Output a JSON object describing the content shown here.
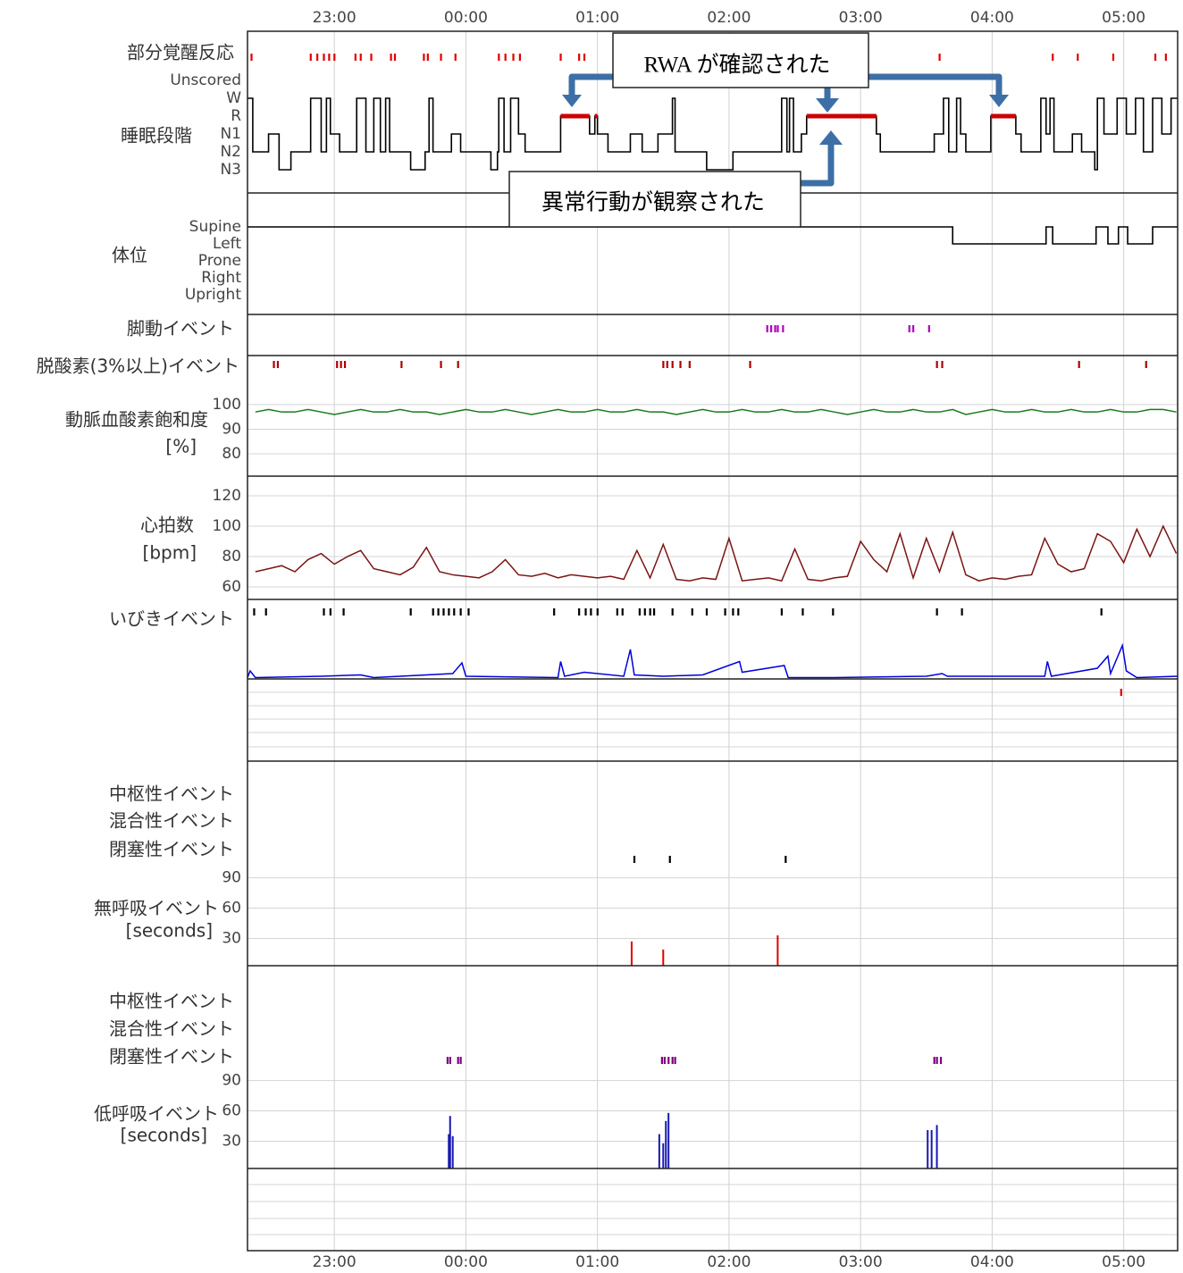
{
  "chart_data": {
    "type": "stacked-panels",
    "xlim": [
      22.34,
      29.41
    ],
    "xticks": [
      {
        "value": 23,
        "label": "23:00"
      },
      {
        "value": 24,
        "label": "00:00"
      },
      {
        "value": 25,
        "label": "01:00"
      },
      {
        "value": 26,
        "label": "02:00"
      },
      {
        "value": 27,
        "label": "03:00"
      },
      {
        "value": 28,
        "label": "04:00"
      },
      {
        "value": 29,
        "label": "05:00"
      }
    ],
    "panels": [
      {
        "type": "events",
        "label": "部分覚醒反応",
        "color": "#e00000",
        "x": [
          22.37,
          22.82,
          22.87,
          22.92,
          22.96,
          23.0,
          23.16,
          23.2,
          23.28,
          23.43,
          23.46,
          23.68,
          23.71,
          23.81,
          23.92,
          24.25,
          24.3,
          24.36,
          24.41,
          24.72,
          24.86,
          24.9,
          27.6,
          28.46,
          28.65,
          28.92,
          29.24,
          29.32
        ]
      },
      {
        "type": "step",
        "label": "睡眠段階",
        "categories": [
          "Unscored",
          "W",
          "R",
          "N1",
          "N2",
          "N3"
        ],
        "color": "#000000",
        "highlight": {
          "stage": "R",
          "color": "#cc0000"
        },
        "x": [
          22.34,
          22.38,
          22.5,
          22.58,
          22.67,
          22.82,
          22.9,
          22.94,
          22.97,
          23.04,
          23.17,
          23.24,
          23.3,
          23.35,
          23.39,
          23.42,
          23.58,
          23.69,
          23.72,
          23.75,
          23.89,
          23.96,
          24.19,
          24.24,
          24.25,
          24.29,
          24.34,
          24.4,
          24.45,
          24.72,
          24.94,
          24.98,
          25.0,
          25.08,
          25.25,
          25.34,
          25.46,
          25.57,
          25.59,
          25.83,
          26.03,
          26.4,
          26.44,
          26.46,
          26.49,
          26.55,
          26.59,
          27.12,
          27.15,
          27.56,
          27.63,
          27.67,
          27.73,
          27.76,
          27.8,
          27.99,
          28.18,
          28.22,
          28.37,
          28.41,
          28.44,
          28.47,
          28.61,
          28.68,
          28.78,
          28.8,
          28.85,
          28.95,
          29.02,
          29.09,
          29.15,
          29.22,
          29.29,
          29.36
        ],
        "stages": [
          "W",
          "N2",
          "N1",
          "N3",
          "N2",
          "W",
          "N2",
          "W",
          "N1",
          "N2",
          "W",
          "N2",
          "W",
          "N2",
          "W",
          "N2",
          "N3",
          "N2",
          "W",
          "N2",
          "N1",
          "N2",
          "N3",
          "N2",
          "W",
          "N2",
          "W",
          "N1",
          "N2",
          "R",
          "N1",
          "R",
          "N1",
          "N2",
          "N1",
          "N2",
          "N1",
          "W",
          "N2",
          "N3",
          "N2",
          "W",
          "N2",
          "W",
          "N2",
          "N1",
          "R",
          "N1",
          "N2",
          "N1",
          "W",
          "N2",
          "W",
          "N1",
          "N2",
          "R",
          "N1",
          "N2",
          "W",
          "N1",
          "W",
          "N2",
          "N1",
          "N2",
          "N3",
          "W",
          "N1",
          "W",
          "N1",
          "W",
          "N2",
          "W",
          "N1",
          "W"
        ]
      },
      {
        "type": "step",
        "label": "体位",
        "categories": [
          "Supine",
          "Left",
          "Prone",
          "Right",
          "Upright"
        ],
        "color": "#000000",
        "x": [
          22.34,
          27.7,
          28.41,
          28.46,
          28.79,
          28.88,
          28.96,
          29.03,
          29.22
        ],
        "stages": [
          "Supine",
          "Left",
          "Supine",
          "Left",
          "Supine",
          "Left",
          "Supine",
          "Left",
          "Supine"
        ]
      },
      {
        "type": "events",
        "label": "脚動イベント",
        "color": "#b000c0",
        "x": [
          26.29,
          26.32,
          26.35,
          26.37,
          26.41,
          27.37,
          27.4,
          27.52
        ]
      },
      {
        "type": "events",
        "label": "脱酸素(3%以上)イベント",
        "color": "#b00000",
        "x": [
          22.54,
          22.57,
          23.02,
          23.05,
          23.08,
          23.51,
          23.81,
          23.94,
          25.5,
          25.53,
          25.57,
          25.63,
          25.7,
          26.16,
          27.58,
          27.62,
          28.66,
          29.17
        ]
      },
      {
        "type": "line",
        "label": "動脈血酸素飽和度",
        "unit": "[%]",
        "ylim": [
          70.9,
          104.7
        ],
        "yticks": [
          100,
          90,
          80
        ],
        "color": "#1a7a1a",
        "x": [
          22.4,
          22.5,
          22.6,
          22.7,
          22.8,
          22.9,
          23.0,
          23.1,
          23.2,
          23.3,
          23.4,
          23.5,
          23.6,
          23.7,
          23.8,
          23.9,
          24.0,
          24.1,
          24.2,
          24.3,
          24.4,
          24.5,
          24.6,
          24.7,
          24.8,
          24.9,
          25.0,
          25.1,
          25.2,
          25.3,
          25.4,
          25.5,
          25.6,
          25.7,
          25.8,
          25.9,
          26.0,
          26.1,
          26.2,
          26.3,
          26.4,
          26.5,
          26.6,
          26.7,
          26.8,
          26.9,
          27.0,
          27.1,
          27.2,
          27.3,
          27.4,
          27.5,
          27.6,
          27.7,
          27.8,
          27.9,
          28.0,
          28.1,
          28.2,
          28.3,
          28.4,
          28.5,
          28.6,
          28.7,
          28.8,
          28.9,
          29.0,
          29.1,
          29.2,
          29.3,
          29.4
        ],
        "values": [
          97,
          98,
          97,
          97,
          98,
          97,
          96,
          97,
          98,
          97,
          97,
          98,
          97,
          97,
          96,
          97,
          98,
          97,
          97,
          98,
          97,
          96,
          97,
          98,
          97,
          97,
          98,
          97,
          97,
          98,
          97,
          97,
          96,
          97,
          98,
          97,
          97,
          98,
          97,
          97,
          98,
          97,
          97,
          98,
          97,
          96,
          97,
          98,
          97,
          97,
          98,
          97,
          97,
          98,
          96,
          97,
          98,
          97,
          97,
          98,
          97,
          97,
          98,
          97,
          97,
          98,
          97,
          97,
          98,
          98,
          97
        ]
      },
      {
        "type": "line",
        "label": "心拍数",
        "unit": "[bpm]",
        "ylim": [
          51.8,
          132.9
        ],
        "yticks": [
          120,
          100,
          80,
          60
        ],
        "color": "#7b1414",
        "x": [
          22.4,
          22.5,
          22.6,
          22.7,
          22.8,
          22.9,
          23.0,
          23.1,
          23.2,
          23.3,
          23.4,
          23.5,
          23.6,
          23.7,
          23.8,
          23.9,
          24.0,
          24.1,
          24.2,
          24.3,
          24.4,
          24.5,
          24.6,
          24.7,
          24.8,
          24.9,
          25.0,
          25.1,
          25.2,
          25.3,
          25.4,
          25.5,
          25.6,
          25.7,
          25.8,
          25.9,
          26.0,
          26.1,
          26.2,
          26.3,
          26.4,
          26.5,
          26.6,
          26.7,
          26.8,
          26.9,
          27.0,
          27.1,
          27.2,
          27.3,
          27.4,
          27.5,
          27.6,
          27.7,
          27.8,
          27.9,
          28.0,
          28.1,
          28.2,
          28.3,
          28.4,
          28.5,
          28.6,
          28.7,
          28.8,
          28.9,
          29.0,
          29.1,
          29.2,
          29.3,
          29.4
        ],
        "values": [
          70,
          72,
          74,
          70,
          78,
          82,
          75,
          80,
          84,
          72,
          70,
          68,
          73,
          86,
          70,
          68,
          67,
          66,
          70,
          78,
          68,
          67,
          69,
          66,
          68,
          67,
          66,
          67,
          65,
          84,
          66,
          88,
          65,
          64,
          66,
          65,
          92,
          64,
          65,
          66,
          64,
          85,
          65,
          64,
          66,
          67,
          90,
          78,
          70,
          95,
          66,
          92,
          70,
          96,
          68,
          64,
          66,
          65,
          67,
          68,
          92,
          75,
          70,
          72,
          95,
          90,
          76,
          98,
          80,
          100,
          82
        ]
      },
      {
        "type": "line",
        "label": "いびきイベント",
        "ylim": [
          0,
          40
        ],
        "color": "#0000dd",
        "event_color": "#000000",
        "events": [
          22.39,
          22.48,
          22.92,
          22.97,
          23.07,
          23.58,
          23.75,
          23.79,
          23.83,
          23.87,
          23.91,
          23.96,
          24.02,
          24.67,
          24.86,
          24.91,
          24.95,
          25.0,
          25.15,
          25.19,
          25.32,
          25.36,
          25.4,
          25.43,
          25.57,
          25.72,
          25.83,
          25.97,
          26.03,
          26.07,
          26.4,
          26.56,
          26.79,
          27.58,
          27.77,
          28.83
        ],
        "x": [
          22.34,
          22.36,
          22.4,
          22.9,
          23.2,
          23.3,
          23.9,
          23.97,
          24.0,
          24.7,
          24.72,
          24.75,
          24.9,
          25.2,
          25.25,
          25.28,
          25.5,
          25.8,
          26.08,
          26.1,
          26.42,
          26.45,
          26.8,
          27.5,
          27.62,
          27.66,
          28.0,
          28.4,
          28.42,
          28.45,
          28.8,
          28.88,
          28.9,
          28.99,
          29.02,
          29.1,
          29.41
        ],
        "values": [
          1,
          6,
          1,
          2,
          3,
          1,
          4,
          12,
          2,
          1,
          13,
          2,
          5,
          2,
          22,
          3,
          2,
          3,
          13,
          5,
          10,
          1,
          1,
          2,
          4,
          2,
          2,
          2,
          13,
          2,
          8,
          17,
          4,
          25,
          6,
          1,
          2
        ]
      },
      {
        "type": "events",
        "color": "#e00000",
        "x": [
          28.98
        ]
      },
      {
        "type": "bars",
        "label": "無呼吸イベント",
        "unit": "[seconds]",
        "ylim": [
          3,
          110
        ],
        "yticks": [
          90,
          60,
          30
        ],
        "color": "#e00000",
        "rows": [
          {
            "label": "中枢性イベント",
            "x": []
          },
          {
            "label": "混合性イベント",
            "x": []
          },
          {
            "label": "閉塞性イベント",
            "x": [
              25.28,
              25.55,
              26.43
            ]
          }
        ],
        "event_color": "#000000",
        "x": [
          25.26,
          25.5,
          26.37
        ],
        "values": [
          27,
          19,
          33
        ]
      },
      {
        "type": "bars",
        "label": "低呼吸イベント",
        "unit": "[seconds]",
        "ylim": [
          3,
          110
        ],
        "yticks": [
          90,
          60,
          30
        ],
        "color": "#1818b0",
        "rows": [
          {
            "label": "中枢性イベント",
            "x": []
          },
          {
            "label": "混合性イベント",
            "x": []
          },
          {
            "label": "閉塞性イベント",
            "x": [
              23.86,
              23.88,
              23.94,
              23.96,
              25.49,
              25.51,
              25.54,
              25.57,
              25.59,
              27.56,
              27.58,
              27.61
            ]
          }
        ],
        "event_color": "#800080",
        "x": [
          23.87,
          23.88,
          23.9,
          25.47,
          25.5,
          25.52,
          25.54,
          27.51,
          27.54,
          27.58
        ],
        "values": [
          37,
          55,
          35,
          37,
          28,
          50,
          58,
          41,
          41,
          46
        ]
      }
    ],
    "annotations": [
      "RWA が確認された",
      "異常行動が観察された"
    ]
  }
}
